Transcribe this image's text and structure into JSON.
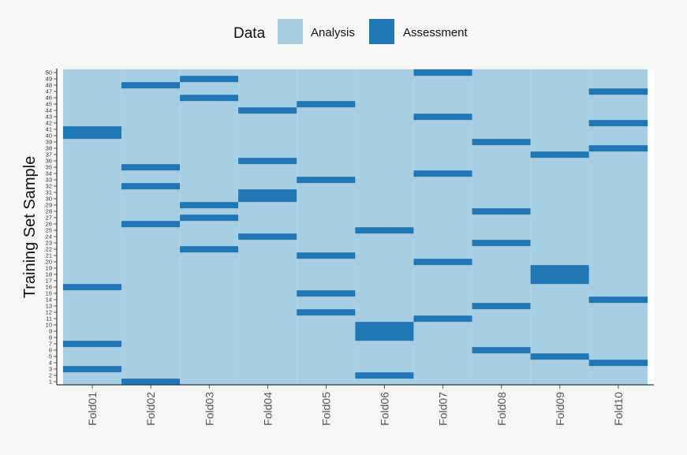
{
  "chart_data": {
    "type": "heatmap",
    "title": "",
    "xlabel": "",
    "ylabel": "Training Set Sample",
    "legend": {
      "title": "Data",
      "position": "top",
      "entries": [
        {
          "label": "Analysis",
          "color": "#a6cee3"
        },
        {
          "label": "Assessment",
          "color": "#1f78b4"
        }
      ]
    },
    "categories": [
      "Fold01",
      "Fold02",
      "Fold03",
      "Fold04",
      "Fold05",
      "Fold06",
      "Fold07",
      "Fold08",
      "Fold09",
      "Fold10"
    ],
    "y_ticks": [
      1,
      2,
      3,
      4,
      5,
      6,
      7,
      8,
      9,
      10,
      11,
      12,
      13,
      14,
      15,
      16,
      17,
      18,
      19,
      20,
      21,
      22,
      23,
      24,
      25,
      26,
      27,
      28,
      29,
      30,
      31,
      32,
      33,
      34,
      35,
      36,
      37,
      38,
      39,
      40,
      41,
      42,
      43,
      44,
      45,
      46,
      47,
      48,
      49,
      50
    ],
    "ylim": [
      1,
      50
    ],
    "grid": false,
    "default_value": "Analysis",
    "assessment": {
      "Fold01": [
        3,
        7,
        16,
        40,
        41
      ],
      "Fold02": [
        1,
        26,
        32,
        35,
        48
      ],
      "Fold03": [
        22,
        27,
        29,
        46,
        49
      ],
      "Fold04": [
        24,
        30,
        31,
        36,
        44
      ],
      "Fold05": [
        12,
        15,
        21,
        33,
        45
      ],
      "Fold06": [
        2,
        8,
        9,
        10,
        25
      ],
      "Fold07": [
        11,
        20,
        34,
        43,
        50
      ],
      "Fold08": [
        6,
        13,
        23,
        28,
        39
      ],
      "Fold09": [
        5,
        17,
        18,
        19,
        37
      ],
      "Fold10": [
        4,
        14,
        38,
        42,
        47
      ]
    }
  }
}
